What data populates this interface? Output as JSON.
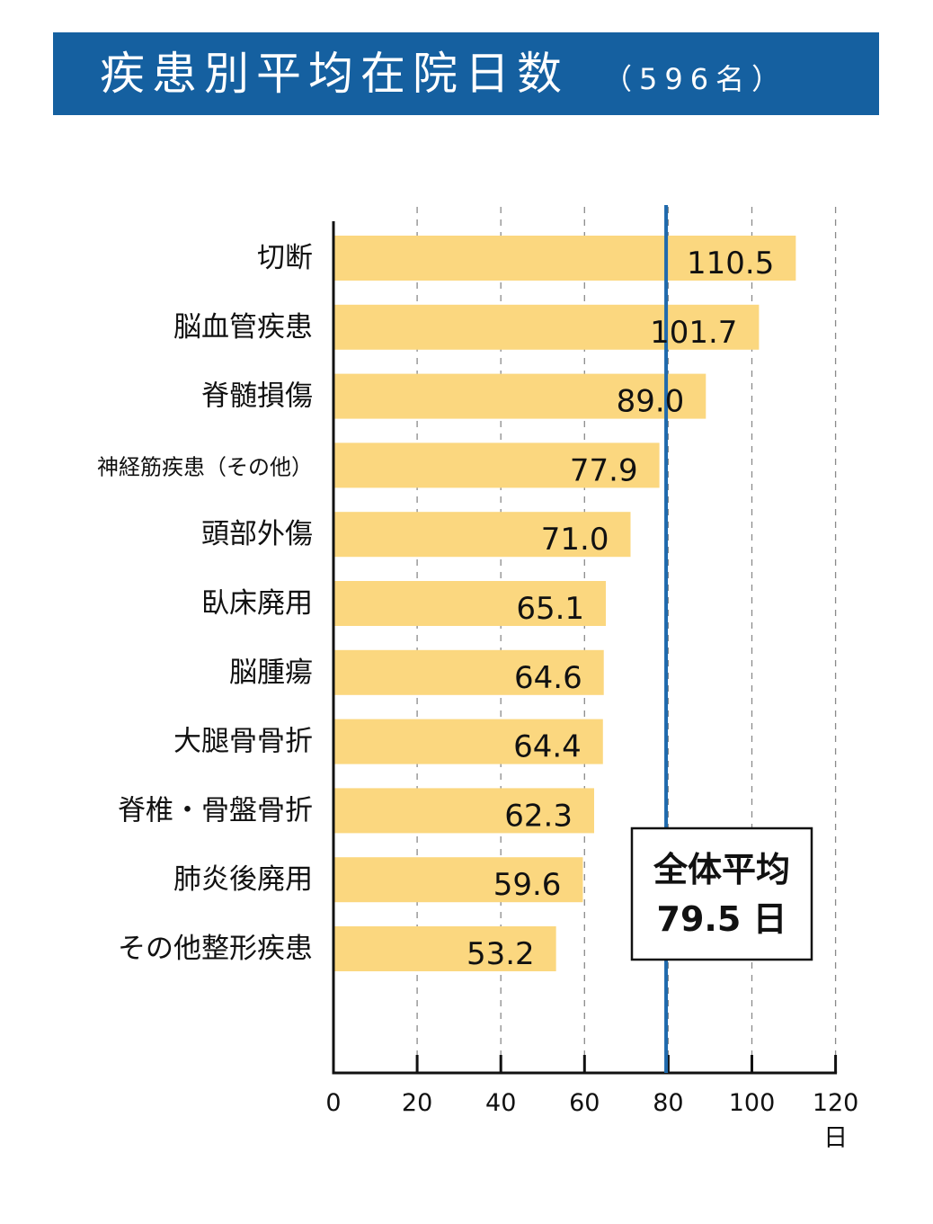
{
  "title": {
    "main": "疾患別平均在院日数",
    "sub": "（596名）"
  },
  "colors": {
    "title_bg": "#1560a0",
    "bar": "#fbd77f",
    "average_line": "#1f6aad"
  },
  "chart_data": {
    "type": "bar",
    "orientation": "horizontal",
    "categories": [
      "切断",
      "脳血管疾患",
      "脊髄損傷",
      "神経筋疾患（その他）",
      "頭部外傷",
      "臥床廃用",
      "脳腫瘍",
      "大腿骨骨折",
      "脊椎・骨盤骨折",
      "肺炎後廃用",
      "その他整形疾患"
    ],
    "values": [
      110.5,
      101.7,
      89.0,
      77.9,
      71.0,
      65.1,
      64.6,
      64.4,
      62.3,
      59.6,
      53.2
    ],
    "value_labels": [
      "110.5",
      "101.7",
      "89.0",
      "77.9",
      "71.0",
      "65.1",
      "64.6",
      "64.4",
      "62.3",
      "59.6",
      "53.2"
    ],
    "xlim": [
      0,
      120
    ],
    "xticks": [
      0,
      20,
      40,
      60,
      80,
      100,
      120
    ],
    "xtick_labels": [
      "0",
      "20",
      "40",
      "60",
      "80",
      "100",
      "120"
    ],
    "xlabel": "日",
    "grid": "vertical dashed",
    "average": {
      "value": 79.5,
      "label_line1": "全体平均",
      "label_line2": "79.5 日"
    }
  }
}
